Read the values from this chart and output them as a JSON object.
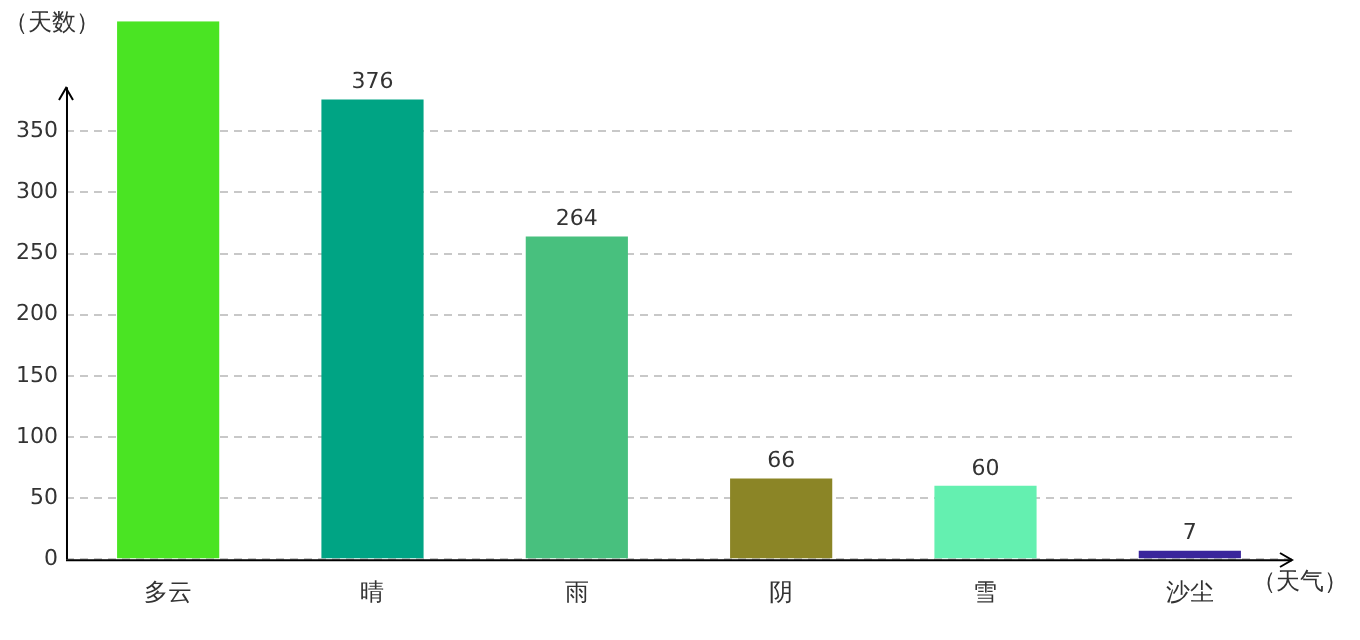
{
  "chart_data": {
    "type": "bar",
    "xlabel": "（天气）",
    "ylabel": "（天数）",
    "categories": [
      "多云",
      "晴",
      "雨",
      "阴",
      "雪",
      "沙尘"
    ],
    "values": [
      440,
      376,
      264,
      66,
      60,
      7
    ],
    "colors": [
      "#4ae423",
      "#00a484",
      "#48c07e",
      "#8b8526",
      "#64f0b0",
      "#3a259c"
    ],
    "value_labels": [
      null,
      "376",
      "264",
      "66",
      "60",
      "7"
    ],
    "ylim": [
      0,
      440
    ],
    "yticks": [
      0,
      50,
      100,
      150,
      200,
      250,
      300,
      350
    ],
    "grid": "y",
    "legend": false
  }
}
